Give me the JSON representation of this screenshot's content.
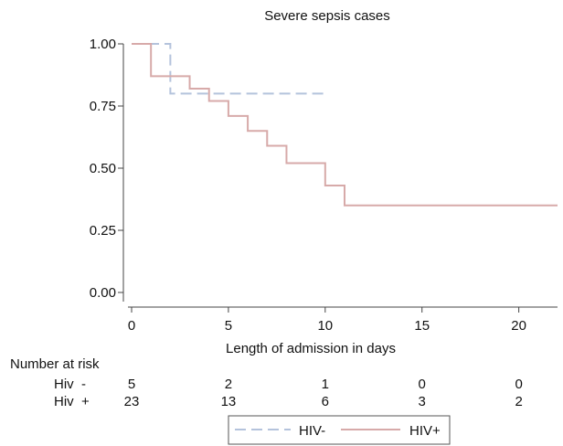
{
  "colors": {
    "hiv_neg": "#b4c3dc",
    "hiv_pos": "#d7aaa9",
    "axis": "#444444"
  },
  "chart_data": {
    "type": "line",
    "title": "Severe sepsis cases",
    "xlabel": "Length of admission in days",
    "ylabel": "",
    "xlim": [
      0,
      22
    ],
    "ylim": [
      0,
      1
    ],
    "xticks": [
      0,
      5,
      10,
      15,
      20
    ],
    "xtick_labels": [
      "0",
      "5",
      "10",
      "15",
      "20"
    ],
    "yticks": [
      0,
      0.25,
      0.5,
      0.75,
      1
    ],
    "ytick_labels": [
      "0.00",
      "0.25",
      "0.50",
      "0.75",
      "1.00"
    ],
    "grid": false,
    "legend_position": "bottom",
    "series": [
      {
        "name": "HIV-",
        "style": "dashed",
        "color": "#b4c3dc",
        "steps": [
          [
            0,
            1.0
          ],
          [
            2,
            0.8
          ],
          [
            10,
            0.8
          ]
        ]
      },
      {
        "name": "HIV+",
        "style": "solid",
        "color": "#d7aaa9",
        "steps": [
          [
            0,
            1.0
          ],
          [
            1,
            0.87
          ],
          [
            3,
            0.82
          ],
          [
            4,
            0.77
          ],
          [
            5,
            0.71
          ],
          [
            6,
            0.65
          ],
          [
            7,
            0.59
          ],
          [
            8,
            0.52
          ],
          [
            10,
            0.43
          ],
          [
            11,
            0.35
          ],
          [
            22,
            0.35
          ]
        ]
      }
    ],
    "risk_table": {
      "heading": "Number at risk",
      "rows": [
        {
          "label": "Hiv  -",
          "values": [
            "5",
            "2",
            "1",
            "0",
            "0"
          ]
        },
        {
          "label": "Hiv  +",
          "values": [
            "23",
            "13",
            "6",
            "3",
            "2"
          ]
        }
      ]
    }
  }
}
